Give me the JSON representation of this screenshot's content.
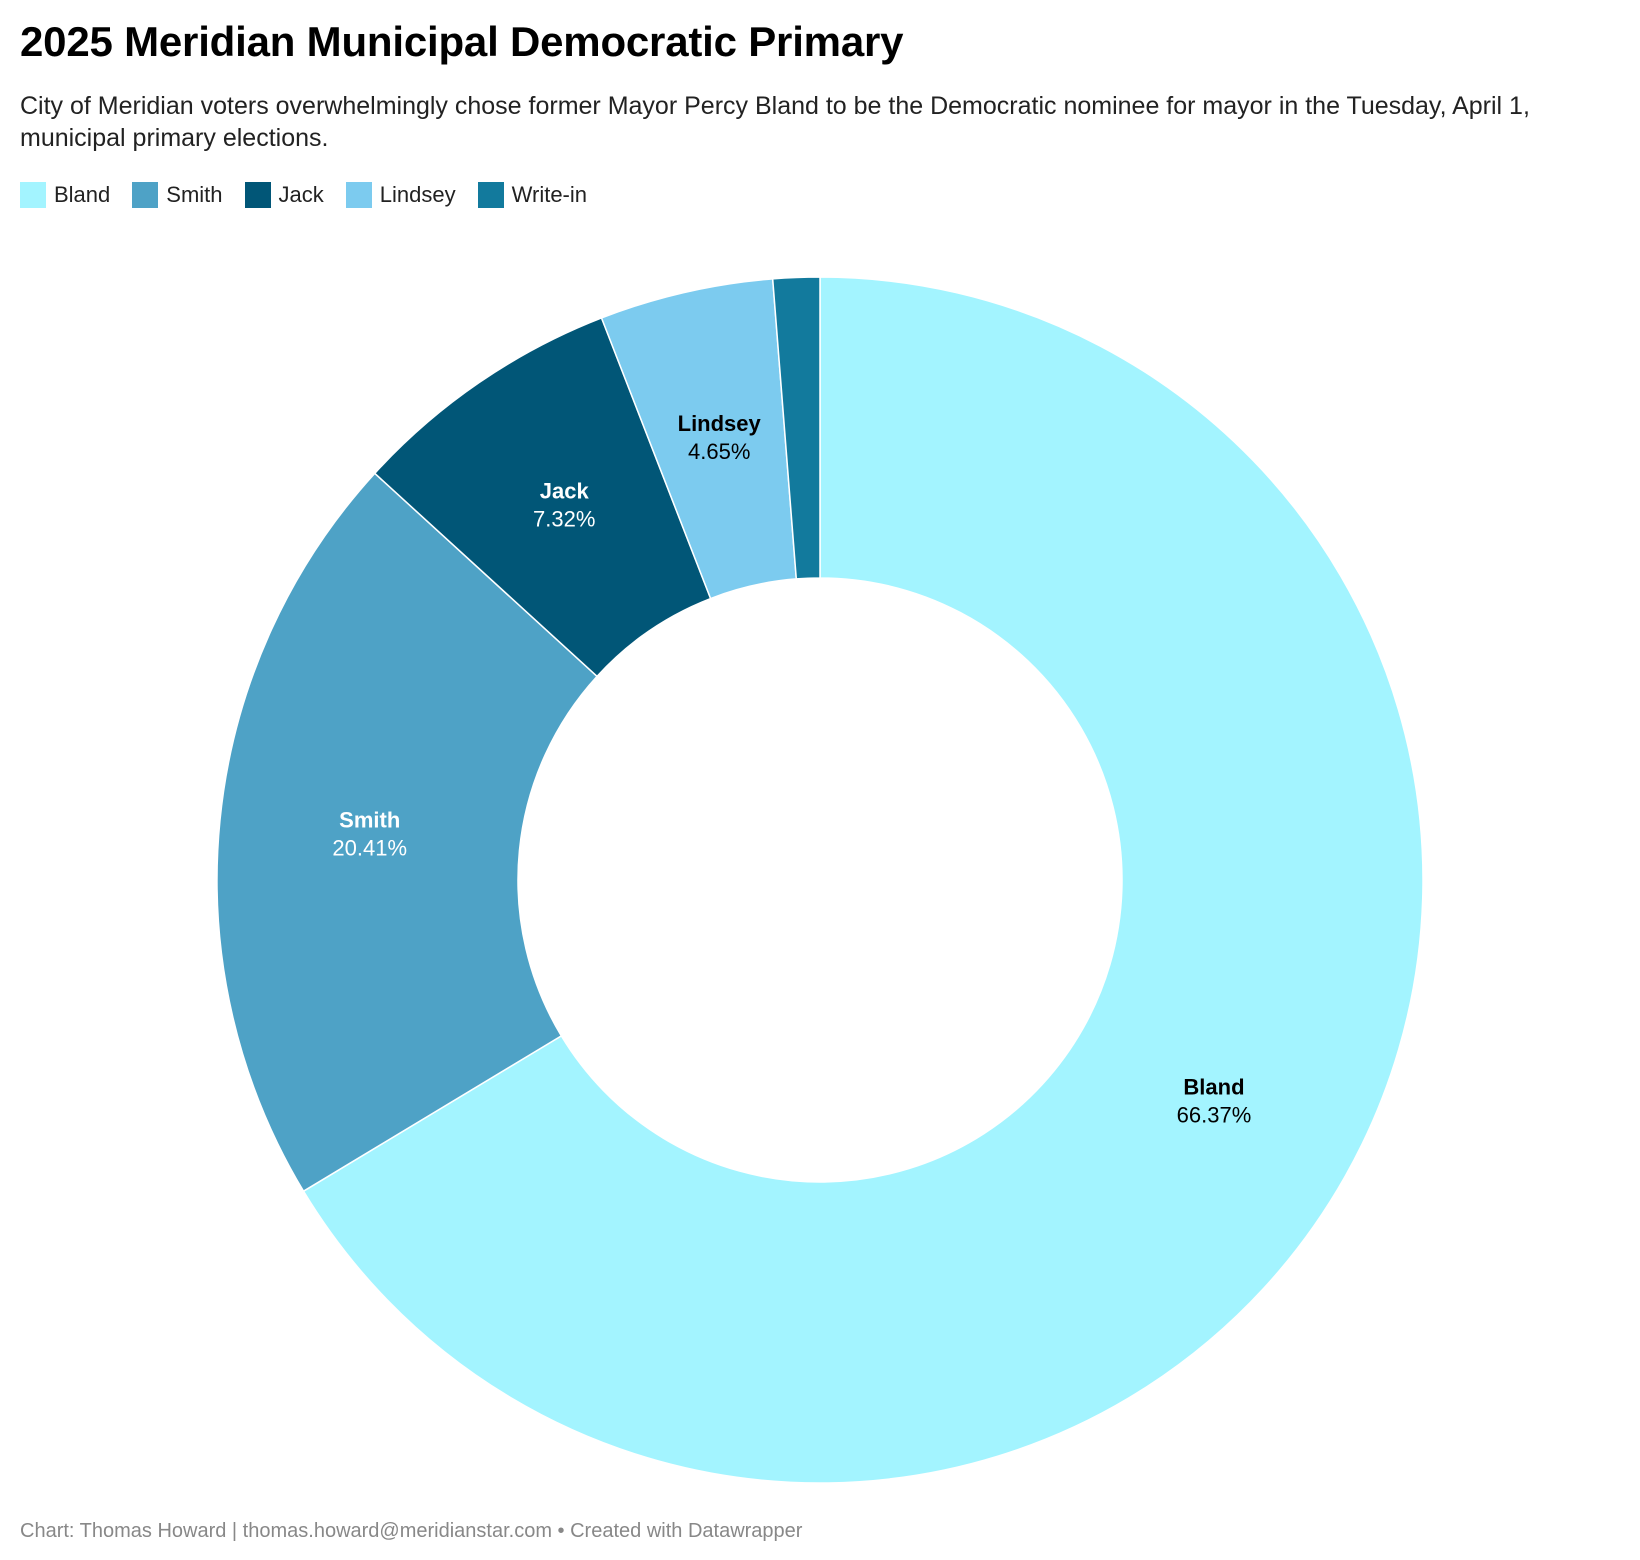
{
  "header": {
    "title": "2025 Meridian Municipal Democratic Primary",
    "subtitle": "City of Meridian voters overwhelmingly chose former Mayor Percy Bland to be the Democratic nominee for mayor in the Tuesday, April 1, municipal primary elections."
  },
  "legend": {
    "placement": "top-left",
    "items": [
      {
        "label": "Bland",
        "color": "#a3f4ff"
      },
      {
        "label": "Smith",
        "color": "#4ea2c6"
      },
      {
        "label": "Jack",
        "color": "#015677"
      },
      {
        "label": "Lindsey",
        "color": "#7ccbef"
      },
      {
        "label": "Write-in",
        "color": "#127a9d"
      }
    ]
  },
  "chart_data": {
    "type": "pie",
    "donut": true,
    "title": "2025 Meridian Municipal Democratic Primary",
    "slices": [
      {
        "name": "Bland",
        "value": 66.37,
        "label": "66.37%",
        "color": "#a3f4ff",
        "label_color": "#000000",
        "show_label": true
      },
      {
        "name": "Smith",
        "value": 20.41,
        "label": "20.41%",
        "color": "#4ea2c6",
        "label_color": "#ffffff",
        "show_label": true
      },
      {
        "name": "Jack",
        "value": 7.32,
        "label": "7.32%",
        "color": "#015677",
        "label_color": "#ffffff",
        "show_label": true
      },
      {
        "name": "Lindsey",
        "value": 4.65,
        "label": "4.65%",
        "color": "#7ccbef",
        "label_color": "#000000",
        "show_label": true
      },
      {
        "name": "Write-in",
        "value": 1.25,
        "label": "",
        "color": "#127a9d",
        "label_color": "#ffffff",
        "show_label": false
      }
    ]
  },
  "footer": {
    "credit": "Chart: Thomas Howard | thomas.howard@meridianstar.com • Created with Datawrapper"
  }
}
